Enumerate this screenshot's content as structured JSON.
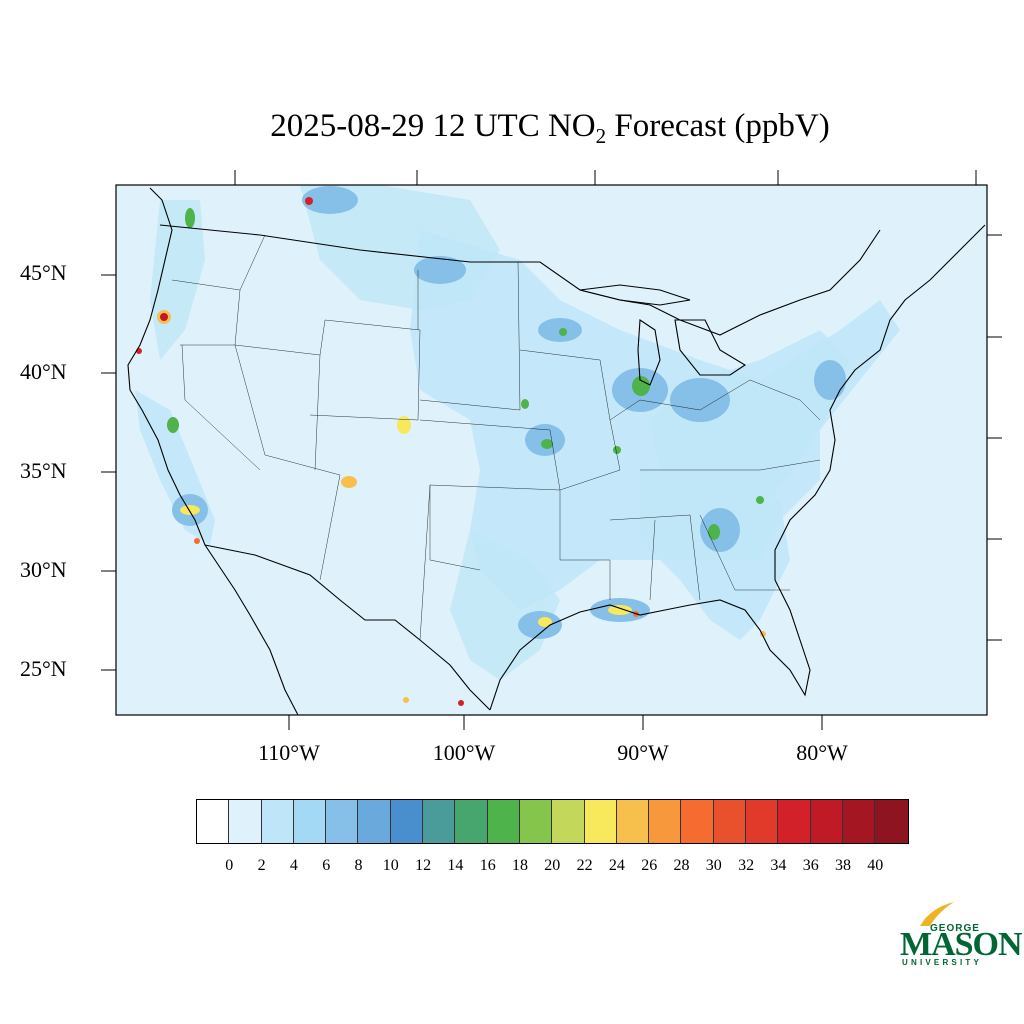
{
  "title": {
    "main": "2025-08-29 12 UTC NO",
    "subscript": "2",
    "rest": " Forecast (ppbV)"
  },
  "map": {
    "region": "Contiguous United States",
    "background_color": "#dff2fb",
    "latitude_labels": [
      "45°N",
      "40°N",
      "35°N",
      "30°N",
      "25°N"
    ],
    "longitude_labels": [
      "110°W",
      "100°W",
      "90°W",
      "80°W"
    ],
    "hotspots": [
      {
        "name": "Seattle",
        "level": 20
      },
      {
        "name": "Portland",
        "level": 40
      },
      {
        "name": "San Francisco Bay",
        "level": 20
      },
      {
        "name": "Los Angeles",
        "level": 26
      },
      {
        "name": "San Diego",
        "level": 30
      },
      {
        "name": "Phoenix",
        "level": 18
      },
      {
        "name": "Denver",
        "level": 24
      },
      {
        "name": "Albuquerque",
        "level": 26
      },
      {
        "name": "Calgary",
        "level": 30
      },
      {
        "name": "Chicago",
        "level": 18
      },
      {
        "name": "Kansas City",
        "level": 22
      },
      {
        "name": "Houston",
        "level": 24
      },
      {
        "name": "New Orleans / Baton Rouge",
        "level": 28
      },
      {
        "name": "Monterrey",
        "level": 30
      },
      {
        "name": "Tampa",
        "level": 26
      }
    ]
  },
  "colorbar": {
    "colors": [
      "#ffffff",
      "#dff2fb",
      "#bfe6f8",
      "#a3d9f5",
      "#86c0e8",
      "#6aa9dc",
      "#4a8fcd",
      "#4a9c9a",
      "#46a66e",
      "#4db34a",
      "#86c54c",
      "#c3d75a",
      "#f7e85c",
      "#f7c04c",
      "#f7983c",
      "#f56b30",
      "#e9502c",
      "#e13a2a",
      "#d32129",
      "#bf1a26",
      "#a51623",
      "#8d1420"
    ],
    "tick_labels": [
      "0",
      "2",
      "4",
      "6",
      "8",
      "10",
      "12",
      "14",
      "16",
      "18",
      "20",
      "22",
      "24",
      "26",
      "28",
      "30",
      "32",
      "34",
      "36",
      "38",
      "40"
    ]
  },
  "logo": {
    "line1": "GEORGE",
    "line2": "MASON",
    "line3": "UNIVERSITY",
    "color": "#006633",
    "accent_color": "#f0b323"
  }
}
